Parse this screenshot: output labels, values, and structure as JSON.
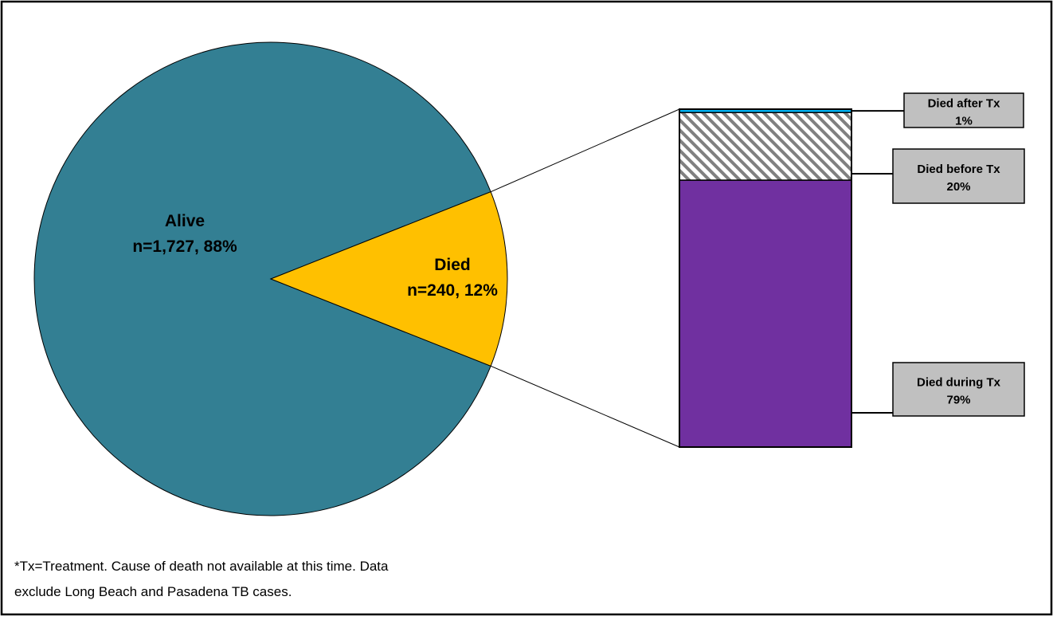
{
  "chart_data": [
    {
      "type": "pie",
      "title": "",
      "slices": [
        {
          "key": "alive",
          "name": "Alive",
          "count": 1727,
          "percent": 88,
          "label_lines": [
            "Alive",
            "n=1,727, 88%"
          ],
          "color": "#337F93"
        },
        {
          "key": "died",
          "name": "Died",
          "count": 240,
          "percent": 12,
          "label_lines": [
            "Died",
            "n=240, 12%"
          ],
          "color": "#FFC000"
        }
      ]
    },
    {
      "type": "bar",
      "stacked": true,
      "description_of": "Died",
      "segments": [
        {
          "key": "during",
          "label_lines": [
            "Died during Tx",
            "79%"
          ],
          "percent": 79,
          "fill": "solid",
          "color": "#7030A0"
        },
        {
          "key": "before",
          "label_lines": [
            "Died before Tx",
            "20%"
          ],
          "percent": 20,
          "fill": "hatched",
          "color": "#808080"
        },
        {
          "key": "after",
          "label_lines": [
            "Died after Tx",
            "1%"
          ],
          "percent": 1,
          "fill": "solid",
          "color": "#00B0F0"
        }
      ]
    }
  ],
  "footnote": {
    "lines": [
      "*Tx=Treatment.  Cause of death not available at this time. Data",
      "exclude Long Beach and Pasadena TB cases."
    ]
  },
  "colors": {
    "frame": "#000000",
    "callout_fill": "#C0C0C0",
    "hatch_bg": "#FFFFFF"
  }
}
